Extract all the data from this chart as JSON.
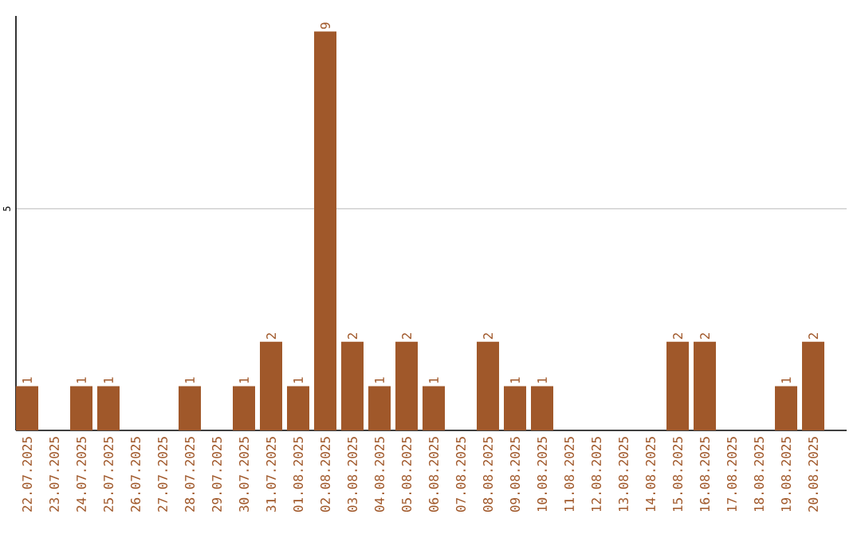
{
  "chart_data": {
    "type": "bar",
    "categories": [
      "22.07.2025",
      "23.07.2025",
      "24.07.2025",
      "25.07.2025",
      "26.07.2025",
      "27.07.2025",
      "28.07.2025",
      "29.07.2025",
      "30.07.2025",
      "31.07.2025",
      "01.08.2025",
      "02.08.2025",
      "03.08.2025",
      "04.08.2025",
      "05.08.2025",
      "06.08.2025",
      "07.08.2025",
      "08.08.2025",
      "09.08.2025",
      "10.08.2025",
      "11.08.2025",
      "12.08.2025",
      "13.08.2025",
      "14.08.2025",
      "15.08.2025",
      "16.08.2025",
      "17.08.2025",
      "18.08.2025",
      "19.08.2025",
      "20.08.2025"
    ],
    "values": [
      1,
      0,
      1,
      1,
      0,
      0,
      1,
      0,
      1,
      2,
      1,
      9,
      2,
      1,
      2,
      1,
      0,
      2,
      1,
      1,
      0,
      0,
      0,
      0,
      2,
      2,
      0,
      0,
      1,
      2
    ],
    "value_labels": [
      "1",
      null,
      "1",
      "1",
      null,
      null,
      "1",
      null,
      "1",
      "2",
      "1",
      "9",
      "2",
      "1",
      "2",
      "1",
      null,
      "2",
      "1",
      "1",
      null,
      null,
      null,
      null,
      "2",
      "2",
      null,
      null,
      "1",
      "2"
    ],
    "color": "#a0582a",
    "ylim": [
      0,
      9.35
    ],
    "yticks": [
      5
    ],
    "grid": "y"
  }
}
